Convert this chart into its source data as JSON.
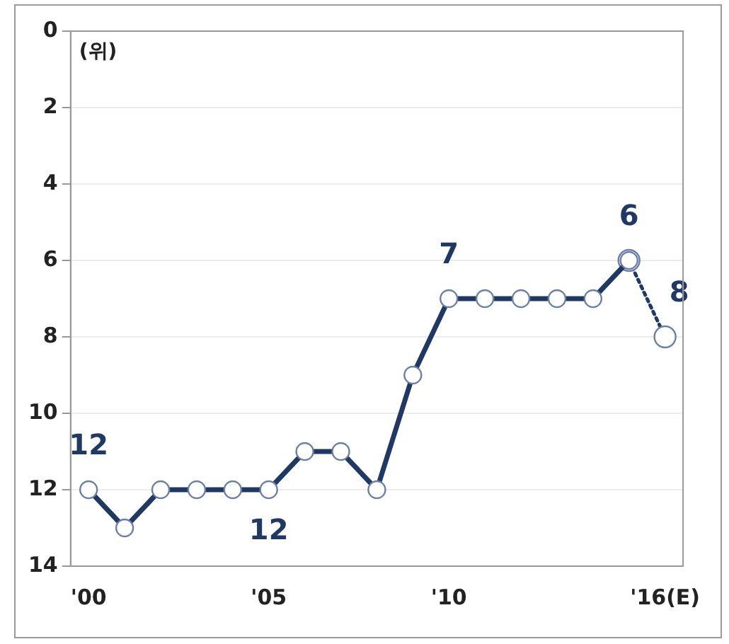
{
  "chart_data": {
    "type": "line",
    "ylabel": "(위)",
    "categories": [
      "'00",
      null,
      null,
      null,
      null,
      "'05",
      null,
      null,
      null,
      null,
      "'10",
      null,
      null,
      null,
      null,
      null,
      "'16(E)"
    ],
    "series": [
      {
        "color": "#203864",
        "line_style": "solid",
        "values": [
          12,
          13,
          12,
          12,
          12,
          12,
          11,
          11,
          12,
          9,
          7,
          7,
          7,
          7,
          7,
          6,
          null
        ],
        "value_labels": [
          "12",
          null,
          null,
          null,
          null,
          "12",
          null,
          null,
          null,
          null,
          "7",
          null,
          null,
          null,
          null,
          "6",
          null
        ]
      },
      {
        "color": "#203864",
        "line_style": "dotted",
        "values": [
          null,
          null,
          null,
          null,
          null,
          null,
          null,
          null,
          null,
          null,
          null,
          null,
          null,
          null,
          null,
          6,
          8
        ],
        "value_labels": [
          null,
          null,
          null,
          null,
          null,
          null,
          null,
          null,
          null,
          null,
          null,
          null,
          null,
          null,
          null,
          null,
          "8"
        ]
      }
    ],
    "ylim": [
      14,
      0
    ],
    "yticks": [
      0,
      2,
      4,
      6,
      8,
      10,
      12,
      14
    ],
    "grid": "y",
    "marker": "circle",
    "legend": false
  }
}
